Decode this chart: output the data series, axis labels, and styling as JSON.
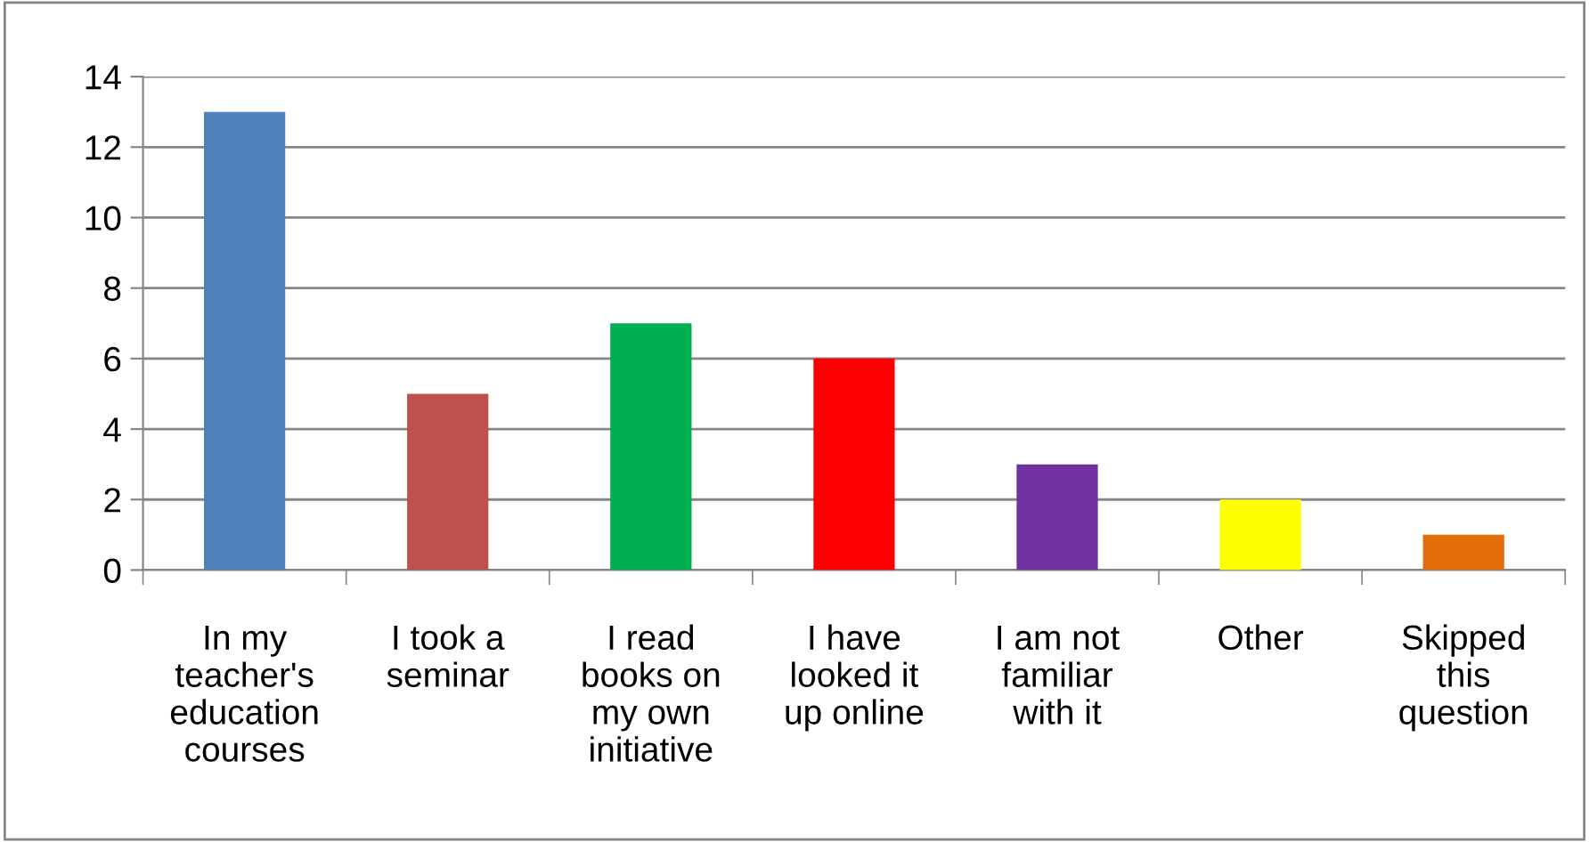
{
  "chart_data": {
    "type": "bar",
    "categories": [
      "In my\nteacher's\neducation\ncourses",
      "I took a\nseminar",
      "I read\nbooks on\nmy own\ninitiative",
      "I have\nlooked it\nup online",
      "I am not\nfamiliar\nwith it",
      "Other",
      "Skipped\nthis\nquestion"
    ],
    "values": [
      13,
      5,
      7,
      6,
      3,
      2,
      1
    ],
    "colors": [
      "#4f81bd",
      "#c0504d",
      "#00b050",
      "#ff0000",
      "#7030a0",
      "#ffff00",
      "#e36c09"
    ],
    "ylim": [
      0,
      14
    ],
    "yticks": [
      0,
      2,
      4,
      6,
      8,
      10,
      12,
      14
    ],
    "grid": "y",
    "legend": false
  }
}
